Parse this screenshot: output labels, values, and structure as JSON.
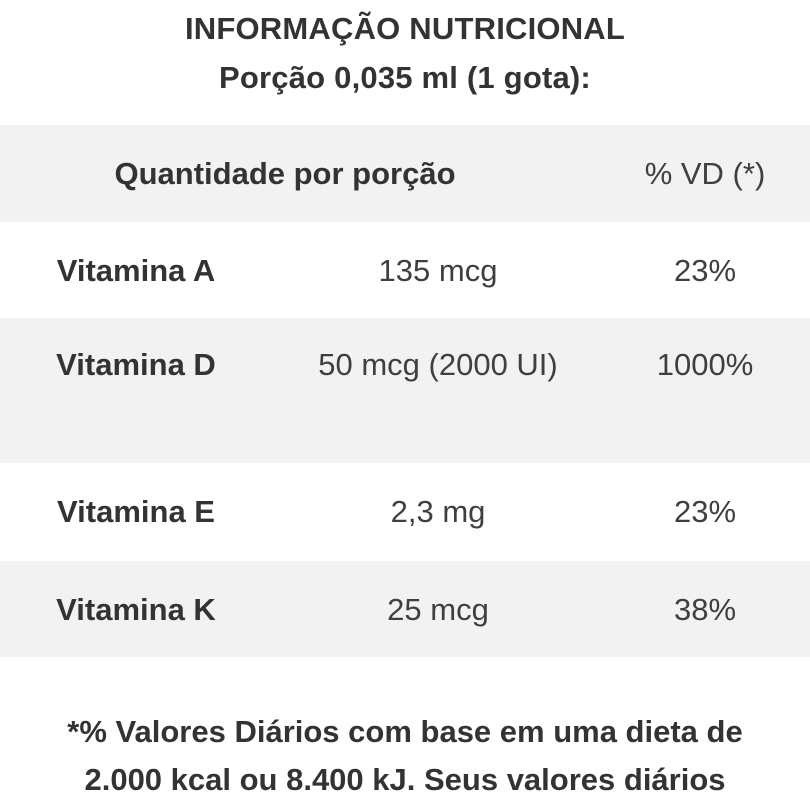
{
  "header": {
    "title": "INFORMAÇÃO NUTRICIONAL",
    "serving": "Porção 0,035 ml (1 gota):"
  },
  "table": {
    "columns": {
      "quantity": "Quantidade por porção",
      "dv": "% VD (*)"
    },
    "rows": [
      {
        "name": "Vitamina A",
        "amount": "135 mcg",
        "dv": "23%"
      },
      {
        "name": "Vitamina D",
        "amount": "50 mcg (2000 UI)",
        "dv": "1000%"
      },
      {
        "name": "Vitamina E",
        "amount": "2,3 mg",
        "dv": "23%"
      },
      {
        "name": "Vitamina K",
        "amount": "25 mcg",
        "dv": "38%"
      }
    ]
  },
  "footnote": {
    "line1": "*% Valores Diários com base em uma dieta de",
    "line2": "2.000 kcal ou 8.400 kJ. Seus valores diários"
  },
  "colors": {
    "row_shade": "#f2f2f2",
    "text": "#333333"
  }
}
